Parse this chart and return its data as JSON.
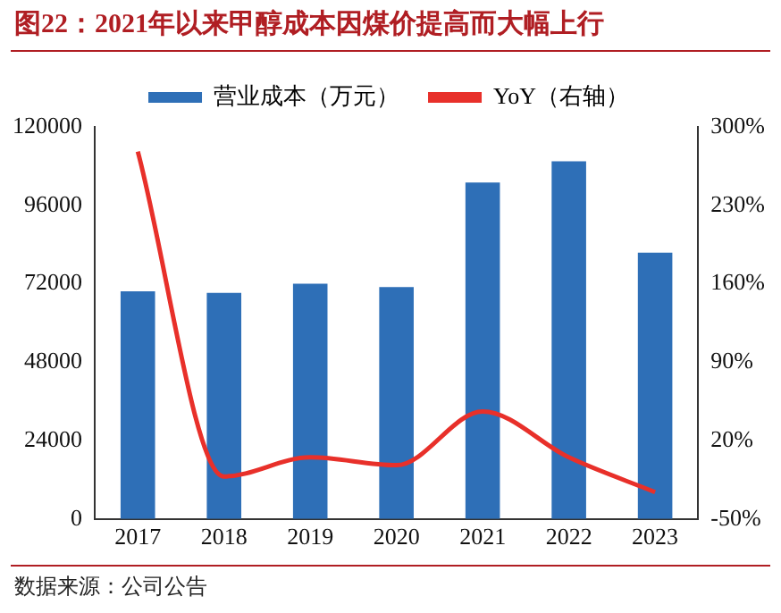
{
  "chart_data": {
    "type": "bar",
    "title": "图22：2021年以来甲醇成本因煤价提高而大幅上行",
    "annotations": [
      "数据来源：公司公告"
    ],
    "categories": [
      "2017",
      "2018",
      "2019",
      "2020",
      "2021",
      "2022",
      "2023"
    ],
    "series": [
      {
        "name": "营业成本（万元）",
        "color": "#2e6fb7",
        "values": [
          69700,
          69200,
          72000,
          71000,
          103000,
          109500,
          81500
        ]
      },
      {
        "name": "YoY（右轴）",
        "type": "line",
        "axis": "y2",
        "color": "#e8302a",
        "values": [
          278,
          -12,
          5,
          -2,
          46,
          5,
          -26
        ]
      }
    ],
    "ylim": [
      0,
      120000
    ],
    "yticks": [
      0,
      24000,
      48000,
      72000,
      96000,
      120000
    ],
    "y2lim": [
      -50,
      300
    ],
    "y2ticks": [
      {
        "value": -50,
        "label": "-50%"
      },
      {
        "value": 20,
        "label": "20%"
      },
      {
        "value": 90,
        "label": "90%"
      },
      {
        "value": 160,
        "label": "160%"
      },
      {
        "value": 230,
        "label": "230%"
      },
      {
        "value": 300,
        "label": "300%"
      }
    ],
    "legend": "top",
    "grid": false,
    "marker": "none",
    "line_style": "solid"
  }
}
